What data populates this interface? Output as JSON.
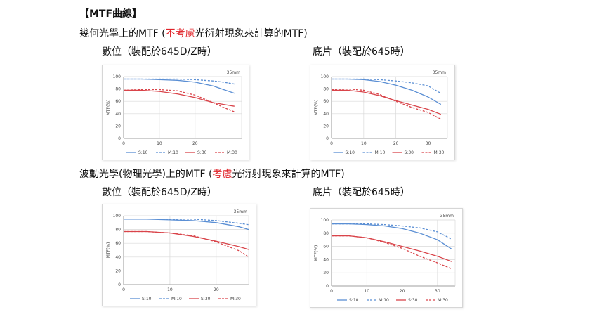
{
  "heading": "【MTF曲線】",
  "section1": {
    "pre": "幾何光學上的MTF (",
    "red": "不考慮",
    "post": "光衍射現象來計算的MTF)"
  },
  "section2": {
    "pre": "波動光學(物理光學)上的MTF (",
    "red": "考慮",
    "post": "光衍射現象來計算的MTF)"
  },
  "captions": {
    "digital": "數位（裝配於645D/Z時）",
    "film": "底片（裝配於645時）"
  },
  "colors": {
    "blue": "#5b8fd4",
    "red": "#d9444a",
    "grid": "#d9d9d9",
    "axis": "#888888"
  },
  "chart_data": [
    {
      "type": "line",
      "annotation": "35mm",
      "ylabel": "MTF(%)",
      "xlim": [
        0,
        33
      ],
      "ylim": [
        0,
        100
      ],
      "xticks": [
        0,
        10,
        20
      ],
      "yticks": [
        0,
        20,
        40,
        60,
        80,
        100
      ],
      "legend": [
        "S:10",
        "M:10",
        "S:30",
        "M:30"
      ],
      "legend_position": "bottom",
      "grid": true,
      "series": [
        {
          "name": "S:10",
          "color": "blue",
          "dash": false,
          "x": [
            0,
            5,
            10,
            15,
            20,
            25,
            28,
            31
          ],
          "y": [
            96,
            96,
            95,
            94,
            91,
            85,
            79,
            73
          ]
        },
        {
          "name": "M:10",
          "color": "blue",
          "dash": true,
          "x": [
            0,
            5,
            10,
            15,
            20,
            25,
            28,
            31
          ],
          "y": [
            96,
            96,
            96,
            96,
            95,
            93,
            91,
            88
          ]
        },
        {
          "name": "S:30",
          "color": "red",
          "dash": false,
          "x": [
            0,
            5,
            10,
            15,
            20,
            25,
            28,
            31
          ],
          "y": [
            78,
            78,
            76,
            72,
            66,
            58,
            55,
            52
          ]
        },
        {
          "name": "M:30",
          "color": "red",
          "dash": true,
          "x": [
            0,
            5,
            10,
            15,
            20,
            25,
            28,
            31
          ],
          "y": [
            78,
            79,
            79,
            77,
            70,
            58,
            50,
            43
          ]
        }
      ]
    },
    {
      "type": "line",
      "annotation": "35mm",
      "ylabel": "MTF(%)",
      "xlim": [
        0,
        36
      ],
      "ylim": [
        0,
        100
      ],
      "xticks": [
        0,
        10,
        20,
        30
      ],
      "yticks": [
        0,
        20,
        40,
        60,
        80,
        100
      ],
      "legend": [
        "S:10",
        "M:10",
        "S:30",
        "M:30"
      ],
      "legend_position": "bottom",
      "grid": true,
      "series": [
        {
          "name": "S:10",
          "color": "blue",
          "dash": false,
          "x": [
            0,
            5,
            10,
            15,
            20,
            25,
            30,
            34
          ],
          "y": [
            96,
            96,
            95,
            92,
            86,
            78,
            67,
            55
          ]
        },
        {
          "name": "M:10",
          "color": "blue",
          "dash": true,
          "x": [
            0,
            5,
            10,
            15,
            20,
            25,
            30,
            34
          ],
          "y": [
            96,
            96,
            96,
            95,
            93,
            90,
            85,
            73
          ]
        },
        {
          "name": "S:30",
          "color": "red",
          "dash": false,
          "x": [
            0,
            5,
            10,
            15,
            20,
            25,
            30,
            34
          ],
          "y": [
            78,
            78,
            75,
            69,
            61,
            54,
            47,
            39
          ]
        },
        {
          "name": "M:30",
          "color": "red",
          "dash": true,
          "x": [
            0,
            5,
            10,
            15,
            20,
            25,
            30,
            34
          ],
          "y": [
            79,
            80,
            78,
            71,
            60,
            50,
            42,
            31
          ]
        }
      ]
    },
    {
      "type": "line",
      "annotation": "35mm",
      "ylabel": "MTF(%)",
      "xlim": [
        0,
        27
      ],
      "ylim": [
        0,
        100
      ],
      "xticks": [
        0,
        10,
        20
      ],
      "yticks": [
        0,
        20,
        40,
        60,
        80,
        100
      ],
      "legend": [
        "S:10",
        "M:10",
        "S:30",
        "M:30"
      ],
      "legend_position": "bottom",
      "grid": true,
      "series": [
        {
          "name": "S:10",
          "color": "blue",
          "dash": false,
          "x": [
            0,
            5,
            10,
            15,
            20,
            25,
            27
          ],
          "y": [
            95,
            95,
            94,
            93,
            90,
            84,
            80
          ]
        },
        {
          "name": "M:10",
          "color": "blue",
          "dash": true,
          "x": [
            0,
            5,
            10,
            15,
            20,
            25,
            27
          ],
          "y": [
            95,
            95,
            95,
            95,
            93,
            89,
            87
          ]
        },
        {
          "name": "S:30",
          "color": "red",
          "dash": false,
          "x": [
            0,
            5,
            10,
            15,
            20,
            25,
            27
          ],
          "y": [
            77,
            77,
            75,
            70,
            63,
            55,
            51
          ]
        },
        {
          "name": "M:30",
          "color": "red",
          "dash": true,
          "x": [
            0,
            5,
            10,
            15,
            20,
            25,
            27
          ],
          "y": [
            77,
            77,
            75,
            71,
            62,
            49,
            40
          ]
        }
      ]
    },
    {
      "type": "line",
      "annotation": "35mm",
      "ylabel": "MTF(%)",
      "xlim": [
        0,
        35
      ],
      "ylim": [
        0,
        100
      ],
      "xticks": [
        0,
        10,
        20,
        30
      ],
      "yticks": [
        0,
        20,
        40,
        60,
        80,
        100
      ],
      "legend": [
        "S:10",
        "M:10",
        "S:30",
        "M:30"
      ],
      "legend_position": "bottom",
      "grid": true,
      "series": [
        {
          "name": "S:10",
          "color": "blue",
          "dash": false,
          "x": [
            0,
            5,
            10,
            15,
            20,
            25,
            30,
            34
          ],
          "y": [
            94,
            94,
            93,
            91,
            87,
            80,
            70,
            56
          ]
        },
        {
          "name": "M:10",
          "color": "blue",
          "dash": true,
          "x": [
            0,
            5,
            10,
            15,
            20,
            25,
            30,
            34
          ],
          "y": [
            94,
            94,
            94,
            93,
            91,
            88,
            82,
            71
          ]
        },
        {
          "name": "S:30",
          "color": "red",
          "dash": false,
          "x": [
            0,
            5,
            10,
            15,
            20,
            25,
            30,
            34
          ],
          "y": [
            76,
            76,
            73,
            67,
            60,
            53,
            45,
            37
          ]
        },
        {
          "name": "M:30",
          "color": "red",
          "dash": true,
          "x": [
            0,
            5,
            10,
            15,
            20,
            25,
            30,
            34
          ],
          "y": [
            76,
            76,
            73,
            66,
            57,
            45,
            35,
            26
          ]
        }
      ]
    }
  ]
}
